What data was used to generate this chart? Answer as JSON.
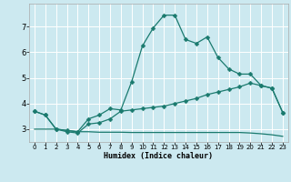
{
  "title": "",
  "xlabel": "Humidex (Indice chaleur)",
  "bg_color": "#cce9f0",
  "grid_color": "#ffffff",
  "line_color": "#1a7a6e",
  "xlim": [
    -0.5,
    23.5
  ],
  "ylim": [
    2.5,
    7.9
  ],
  "yticks": [
    3,
    4,
    5,
    6,
    7
  ],
  "xticks": [
    0,
    1,
    2,
    3,
    4,
    5,
    6,
    7,
    8,
    9,
    10,
    11,
    12,
    13,
    14,
    15,
    16,
    17,
    18,
    19,
    20,
    21,
    22,
    23
  ],
  "series1_x": [
    0,
    1,
    2,
    3,
    4,
    5,
    6,
    7,
    8,
    9,
    10,
    11,
    12,
    13,
    14,
    15,
    16,
    17,
    18,
    19,
    20,
    21,
    22,
    23
  ],
  "series1_y": [
    3.7,
    3.55,
    3.0,
    2.95,
    2.9,
    3.4,
    3.55,
    3.8,
    3.75,
    4.85,
    6.25,
    6.95,
    7.45,
    7.45,
    6.5,
    6.35,
    6.6,
    5.8,
    5.35,
    5.15,
    5.15,
    4.7,
    4.6,
    3.65
  ],
  "series2_x": [
    0,
    1,
    2,
    3,
    4,
    5,
    6,
    7,
    8,
    9,
    10,
    11,
    12,
    13,
    14,
    15,
    16,
    17,
    18,
    19,
    20,
    21,
    22,
    23
  ],
  "series2_y": [
    3.7,
    3.55,
    3.0,
    2.9,
    2.85,
    3.2,
    3.25,
    3.4,
    3.7,
    3.75,
    3.8,
    3.85,
    3.9,
    4.0,
    4.1,
    4.2,
    4.35,
    4.45,
    4.55,
    4.65,
    4.8,
    4.7,
    4.6,
    3.65
  ],
  "series3_x": [
    0,
    1,
    2,
    3,
    4,
    5,
    6,
    7,
    8,
    9,
    10,
    11,
    12,
    13,
    14,
    15,
    16,
    17,
    18,
    19,
    20,
    21,
    22,
    23
  ],
  "series3_y": [
    3.0,
    3.0,
    3.0,
    2.95,
    2.9,
    2.9,
    2.88,
    2.88,
    2.88,
    2.87,
    2.87,
    2.87,
    2.87,
    2.87,
    2.87,
    2.87,
    2.87,
    2.87,
    2.87,
    2.87,
    2.85,
    2.82,
    2.78,
    2.72
  ]
}
